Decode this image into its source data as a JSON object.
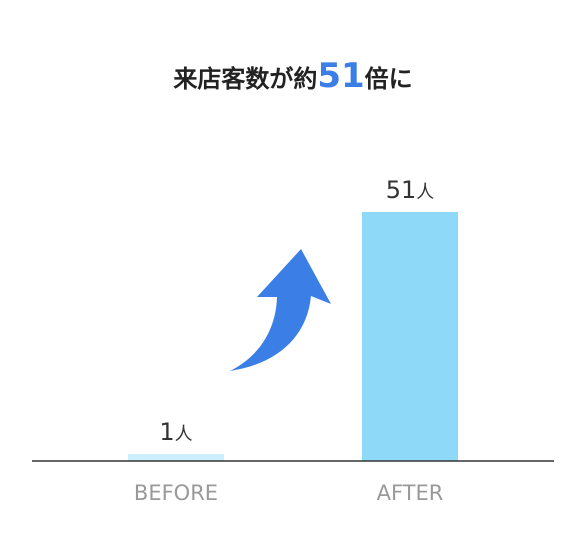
{
  "title": {
    "prefix": "来店客数が約",
    "highlight": "51",
    "suffix": "倍に"
  },
  "colors": {
    "title_text": "#222222",
    "title_highlight": "#3b7fe6",
    "bar_before": "#cdeefb",
    "bar_after": "#8ed8f8",
    "baseline": "#333333",
    "category_label": "#999999",
    "value_label": "#333333",
    "arrow": "#3b7fe6"
  },
  "icons": {
    "arrow": "curved-up-arrow-icon"
  },
  "chart_data": {
    "type": "bar",
    "categories": [
      "BEFORE",
      "AFTER"
    ],
    "values": [
      1,
      51
    ],
    "value_unit": "人",
    "ylim": [
      0,
      51
    ],
    "grid": false,
    "legend": "none",
    "title": "来店客数が約51倍に",
    "xlabel": "",
    "ylabel": ""
  }
}
